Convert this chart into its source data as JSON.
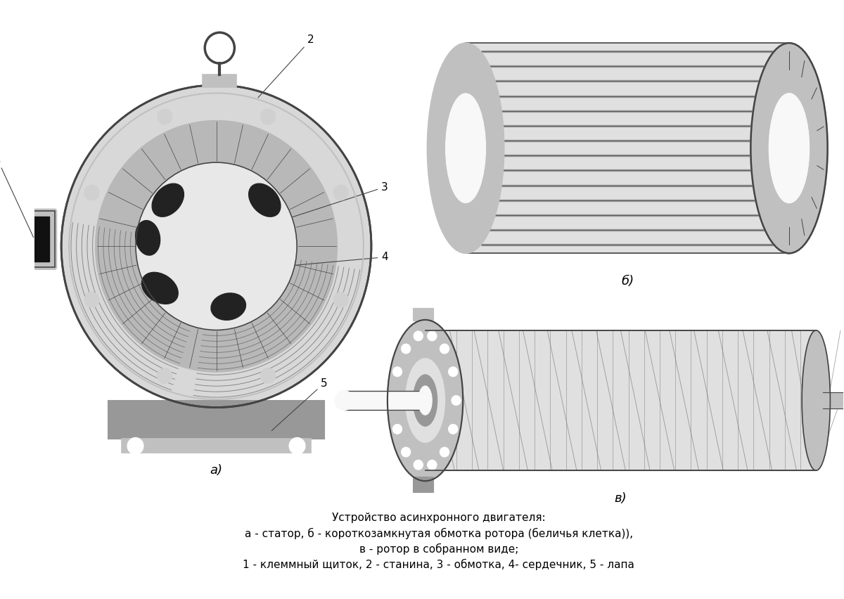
{
  "background_color": "#ffffff",
  "title_lines": [
    "Устройство асинхронного двигателя:",
    "а - статор, б - короткозамкнутая обмотка ротора (беличья клетка)),",
    "в - ротор в собранном виде;",
    "1 - клеммный щиток, 2 - станина, 3 - обмотка, 4- сердечник, 5 - лапа"
  ],
  "label_a": "а)",
  "label_b": "б)",
  "label_c": "в)",
  "lc": "#444444",
  "lc2": "#666666",
  "gray_light": "#e0e0e0",
  "gray_mid": "#c0c0c0",
  "gray_dark": "#989898",
  "gray_darker": "#787878",
  "gray_housing": "#d8d8d8",
  "gray_inner": "#b8b8b8",
  "black_coil": "#222222",
  "white": "#f8f8f8"
}
